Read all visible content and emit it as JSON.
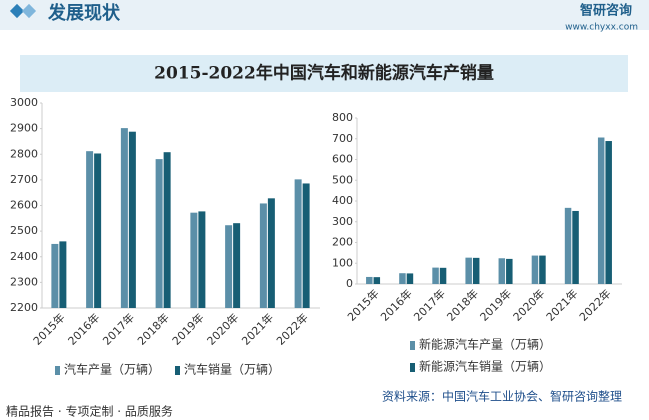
{
  "header": {
    "section": "发展现状",
    "brand": "智研咨询",
    "url": "www.chyxx.com"
  },
  "title": "2015-2022年中国汽车和新能源汽车产销量",
  "source": "资料来源：中国汽车工业协会、智研咨询整理",
  "slogan": "精品报告 · 专项定制 · 品质服务",
  "chart_data": [
    {
      "type": "bar",
      "categories": [
        "2015年",
        "2016年",
        "2017年",
        "2018年",
        "2019年",
        "2020年",
        "2021年",
        "2022年"
      ],
      "series": [
        {
          "name": "汽车产量（万辆）",
          "color": "#5b8fa8",
          "values": [
            2450,
            2812,
            2902,
            2781,
            2572,
            2523,
            2608,
            2702
          ]
        },
        {
          "name": "汽车销量（万辆）",
          "color": "#175e74",
          "values": [
            2460,
            2803,
            2888,
            2808,
            2577,
            2531,
            2628,
            2686
          ]
        }
      ],
      "ylim": [
        2200,
        3000
      ],
      "yticks": [
        2200,
        2300,
        2400,
        2500,
        2600,
        2700,
        2800,
        2900,
        3000
      ]
    },
    {
      "type": "bar",
      "categories": [
        "2015年",
        "2016年",
        "2017年",
        "2018年",
        "2019年",
        "2020年",
        "2021年",
        "2022年"
      ],
      "series": [
        {
          "name": "新能源汽车产量（万辆）",
          "color": "#5b8fa8",
          "values": [
            34,
            52,
            79,
            127,
            124,
            137,
            367,
            706
          ]
        },
        {
          "name": "新能源汽车销量（万辆）",
          "color": "#175e74",
          "values": [
            33,
            51,
            78,
            126,
            121,
            137,
            352,
            689
          ]
        }
      ],
      "ylim": [
        0,
        800
      ],
      "yticks": [
        0,
        100,
        200,
        300,
        400,
        500,
        600,
        700,
        800
      ]
    }
  ]
}
